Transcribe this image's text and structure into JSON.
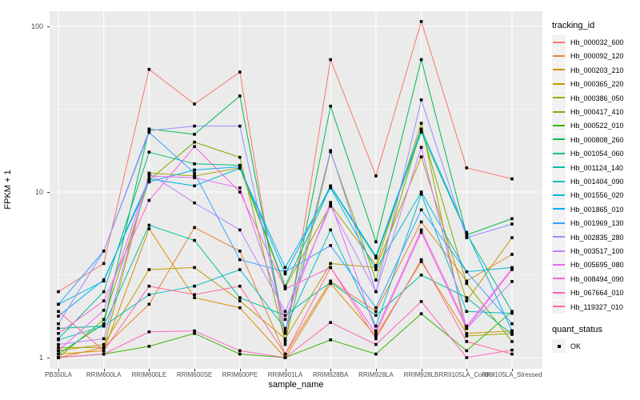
{
  "figure": {
    "y_axis_title": "FPKM + 1",
    "x_axis_title": "sample_name",
    "legend_title": "tracking_id",
    "legend2_title": "quant_status",
    "legend2_item": "OK"
  },
  "chart_data": {
    "type": "line",
    "title": "",
    "xlabel": "sample_name",
    "ylabel": "FPKM + 1",
    "y_scale": "log10",
    "ylim": [
      0.87,
      123
    ],
    "y_ticks": [
      1,
      10,
      100
    ],
    "y_minor_ticks": [
      3.162,
      31.62
    ],
    "grid": "on",
    "panel_bg": "#EBEBEB",
    "grid_color": "#FFFFFF",
    "point_marker": {
      "shape": "square",
      "color": "#000000",
      "size": 3.6
    },
    "legend_position": "right",
    "categories": [
      "PB350LA",
      "RRIM600LA",
      "RRIM600LE",
      "RRIM600SE",
      "RRIM600PE",
      "RRIM901LA",
      "RRIM928BA",
      "RRIM928LA",
      "RRIM928LB",
      "RRII105LA_Control",
      "RRII105LA_Stressed"
    ],
    "series": [
      {
        "name": "Hb_000032_600",
        "color": "#F8766D",
        "values": [
          2.5,
          3.7,
          55,
          34,
          53,
          1.2,
          63,
          12.5,
          107,
          14,
          12
        ]
      },
      {
        "name": "Hb_000092_120",
        "color": "#EA8331",
        "values": [
          1.0,
          1.15,
          2.1,
          6.1,
          4.4,
          1.05,
          2.9,
          1.9,
          6.6,
          2.9,
          4.2
        ]
      },
      {
        "name": "Hb_000203_210",
        "color": "#D89000",
        "values": [
          1.05,
          1.1,
          6.0,
          2.3,
          2.0,
          1.0,
          2.8,
          1.35,
          3.8,
          1.4,
          1.45
        ]
      },
      {
        "name": "Hb_000365_220",
        "color": "#C09B00",
        "values": [
          1.1,
          1.2,
          3.4,
          3.5,
          2.2,
          1.3,
          3.7,
          3.5,
          16.3,
          2.2,
          5.3
        ]
      },
      {
        "name": "Hb_000386_050",
        "color": "#A3A500",
        "values": [
          1.15,
          1.15,
          13.0,
          12.5,
          14.0,
          2.65,
          8.4,
          3.6,
          26,
          1.35,
          1.4
        ]
      },
      {
        "name": "Hb_000417_410",
        "color": "#7CAE00",
        "values": [
          1.0,
          1.7,
          11.8,
          20,
          16.2,
          1.25,
          17.5,
          2.94,
          24,
          2.8,
          1.25
        ]
      },
      {
        "name": "Hb_000522_010",
        "color": "#39B600",
        "values": [
          1.0,
          1.05,
          1.17,
          1.4,
          1.05,
          1.0,
          1.28,
          1.05,
          1.84,
          1.1,
          1.9
        ]
      },
      {
        "name": "Hb_000808_260",
        "color": "#00BB4E",
        "values": [
          1.05,
          1.6,
          24,
          22.3,
          38,
          1.4,
          33,
          5.0,
          63,
          5.5,
          6.9
        ]
      },
      {
        "name": "Hb_001054_060",
        "color": "#00BF7D",
        "values": [
          1.3,
          2.5,
          17.4,
          14.8,
          14.5,
          2.7,
          10.8,
          4.0,
          23,
          5.6,
          1.9
        ]
      },
      {
        "name": "Hb_001124_140",
        "color": "#00C1A3",
        "values": [
          1.5,
          1.55,
          6.3,
          5.1,
          2.3,
          1.8,
          2.85,
          1.8,
          3.15,
          2.3,
          1.38
        ]
      },
      {
        "name": "Hb_001404_090",
        "color": "#00BFC4",
        "values": [
          1.28,
          1.55,
          2.4,
          2.7,
          3.4,
          1.5,
          5.9,
          1.55,
          9.7,
          1.9,
          1.85
        ]
      },
      {
        "name": "Hb_001556_020",
        "color": "#00BBDA",
        "values": [
          2.1,
          2.9,
          12.0,
          10.9,
          13.9,
          3.5,
          10.6,
          3.4,
          10.0,
          3.3,
          3.5
        ]
      },
      {
        "name": "Hb_001865_010",
        "color": "#00B0F6",
        "values": [
          1.78,
          2.95,
          11.5,
          13.6,
          14.2,
          3.2,
          10.9,
          4.1,
          24,
          5.7,
          1.45
        ]
      },
      {
        "name": "Hb_001969_130",
        "color": "#35A2FF",
        "values": [
          2.1,
          4.4,
          22.9,
          13.0,
          3.9,
          3.3,
          4.75,
          2.0,
          7.8,
          3.3,
          1.6
        ]
      },
      {
        "name": "Hb_002835_280",
        "color": "#9590FF",
        "values": [
          1.6,
          4.4,
          23.5,
          25,
          25,
          1.45,
          17.8,
          2.5,
          36,
          5.3,
          6.4
        ]
      },
      {
        "name": "Hb_003517_100",
        "color": "#BF80FF",
        "values": [
          1.2,
          1.3,
          12.9,
          8.6,
          5.9,
          1.9,
          8.2,
          2.5,
          18.6,
          1.5,
          2.88
        ]
      },
      {
        "name": "Hb_005695_080",
        "color": "#E76BF3",
        "values": [
          1.1,
          1.93,
          12.5,
          12.2,
          10.6,
          1.7,
          8.65,
          1.45,
          5.9,
          1.55,
          3.45
        ]
      },
      {
        "name": "Hb_008494_090",
        "color": "#F962DD",
        "values": [
          1.4,
          2.2,
          8.9,
          18.8,
          10.0,
          2.6,
          3.5,
          1.4,
          5.7,
          1.5,
          3.4
        ]
      },
      {
        "name": "Hb_067664_010",
        "color": "#FF62BC",
        "values": [
          1.0,
          1.05,
          1.43,
          1.45,
          1.1,
          1.0,
          1.63,
          1.2,
          2.18,
          1.0,
          1.11
        ]
      },
      {
        "name": "Hb_119327_010",
        "color": "#FF6A98",
        "values": [
          1.9,
          1.1,
          2.7,
          2.4,
          2.7,
          1.05,
          3.5,
          1.3,
          3.9,
          1.25,
          1.05
        ]
      }
    ],
    "quant_status_legend": {
      "title": "quant_status",
      "items": [
        "OK"
      ]
    }
  }
}
